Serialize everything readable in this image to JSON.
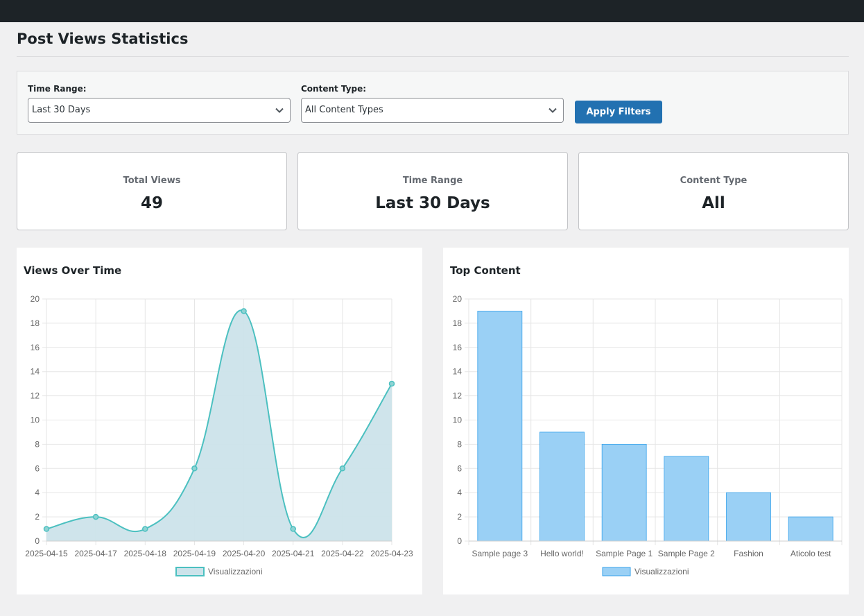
{
  "page": {
    "title": "Post Views Statistics"
  },
  "filters": {
    "time_range_label": "Time Range:",
    "time_range_value": "Last 30 Days",
    "content_type_label": "Content Type:",
    "content_type_value": "All Content Types",
    "apply_label": "Apply Filters"
  },
  "summary": [
    {
      "label": "Total Views",
      "value": "49"
    },
    {
      "label": "Time Range",
      "value": "Last 30 Days"
    },
    {
      "label": "Content Type",
      "value": "All"
    }
  ],
  "colors": {
    "line": "#4bc0c0",
    "line_fill": "#cce3ea",
    "bar": "#9ad0f5",
    "bar_border": "#36a2eb",
    "button": "#2271b1"
  },
  "chart_data": [
    {
      "type": "line",
      "title": "Views Over Time",
      "categories": [
        "2025-04-15",
        "2025-04-17",
        "2025-04-18",
        "2025-04-19",
        "2025-04-20",
        "2025-04-21",
        "2025-04-22",
        "2025-04-23"
      ],
      "series": [
        {
          "name": "Visualizzazioni",
          "values": [
            1,
            2,
            1,
            6,
            19,
            1,
            6,
            13
          ]
        }
      ],
      "ylim": [
        0,
        20
      ],
      "yticks": [
        0,
        2,
        4,
        6,
        8,
        10,
        12,
        14,
        16,
        18,
        20
      ],
      "fill": true,
      "grid": true,
      "legend": "bottom"
    },
    {
      "type": "bar",
      "title": "Top Content",
      "categories": [
        "Sample page 3",
        "Hello world!",
        "Sample Page 1",
        "Sample Page 2",
        "Fashion",
        "Aticolo test"
      ],
      "series": [
        {
          "name": "Visualizzazioni",
          "values": [
            19,
            9,
            8,
            7,
            4,
            2
          ]
        }
      ],
      "ylim": [
        0,
        20
      ],
      "yticks": [
        0,
        2,
        4,
        6,
        8,
        10,
        12,
        14,
        16,
        18,
        20
      ],
      "grid": true,
      "legend": "bottom"
    }
  ]
}
